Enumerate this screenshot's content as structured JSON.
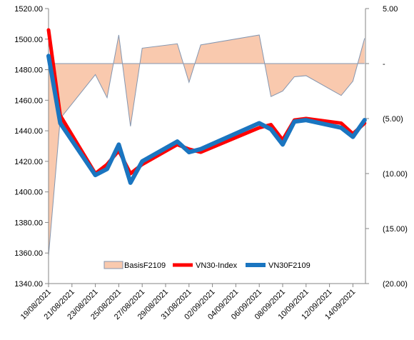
{
  "chart_data": {
    "type": "line",
    "dates": [
      "19/08/2021",
      "20/08/2021",
      "23/08/2021",
      "24/08/2021",
      "25/08/2021",
      "26/08/2021",
      "27/08/2021",
      "30/08/2021",
      "31/08/2021",
      "01/09/2021",
      "06/09/2021",
      "07/09/2021",
      "08/09/2021",
      "09/09/2021",
      "10/09/2021",
      "13/09/2021",
      "14/09/2021",
      "15/09/2021"
    ],
    "x_tick_labels": [
      "19/08/2021",
      "21/08/2021",
      "23/08/2021",
      "25/08/2021",
      "27/08/2021",
      "29/08/2021",
      "31/08/2021",
      "02/09/2021",
      "04/09/2021",
      "06/09/2021",
      "08/09/2021",
      "10/09/2021",
      "12/09/2021",
      "14/09/2021"
    ],
    "series": [
      {
        "name": "BasisF2109",
        "type": "area",
        "axis": "right",
        "values": [
          -17.5,
          -5.0,
          -1.0,
          -3.1,
          2.6,
          -5.7,
          1.4,
          1.8,
          -1.7,
          1.7,
          2.6,
          -3.0,
          -2.5,
          -1.2,
          -1.1,
          -2.9,
          -1.6,
          2.3
        ]
      },
      {
        "name": "VN30-Index",
        "type": "line",
        "axis": "left",
        "values": [
          1506,
          1450,
          1412,
          1418,
          1427,
          1412,
          1418,
          1431,
          1428,
          1426,
          1442,
          1444,
          1434,
          1447,
          1448,
          1445,
          1438,
          1445
        ]
      },
      {
        "name": "VN30F2109",
        "type": "line",
        "axis": "left",
        "values": [
          1489,
          1445,
          1411,
          1415,
          1431,
          1406,
          1420,
          1433,
          1426,
          1428,
          1445,
          1441,
          1431,
          1446,
          1447,
          1442,
          1436,
          1447
        ]
      }
    ],
    "left_axis": {
      "ylim": [
        1340,
        1520
      ],
      "ticks": [
        "1340.00",
        "1360.00",
        "1380.00",
        "1400.00",
        "1420.00",
        "1440.00",
        "1460.00",
        "1480.00",
        "1500.00",
        "1520.00"
      ]
    },
    "right_axis": {
      "ylim": [
        -20,
        5
      ],
      "ticks": [
        "5.00",
        "-",
        "(5.00)",
        "(10.00)",
        "(15.00)",
        "(20.00)"
      ]
    },
    "legend_position": "bottom-inside",
    "grid": false,
    "colors": {
      "BasisF2109_fill": "#f9c9ae",
      "BasisF2109_line": "#8496b0",
      "VN30-Index": "#ff0000",
      "VN30F2109": "#1a75c0",
      "zero_line": "#8496b0",
      "axis": "#868686"
    }
  }
}
